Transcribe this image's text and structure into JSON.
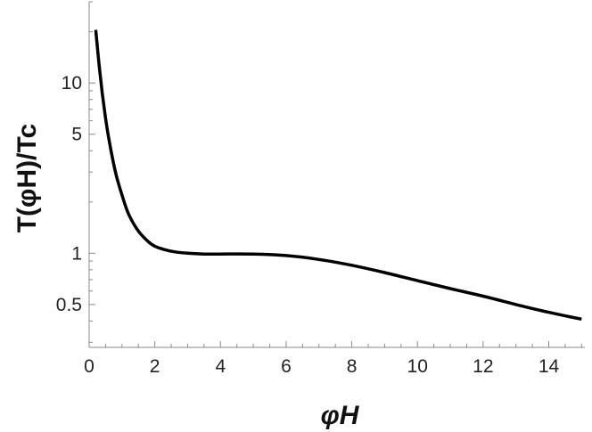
{
  "chart_data": {
    "type": "line",
    "title": "",
    "xlabel": "φH",
    "ylabel": "T(φH)/Tc",
    "x_scale": "linear",
    "y_scale": "log",
    "xlim": [
      0,
      15.1
    ],
    "ylim": [
      0.28,
      30
    ],
    "xticks": [
      0,
      2,
      4,
      6,
      8,
      10,
      12,
      14
    ],
    "yticks": [
      0.5,
      1,
      5,
      10
    ],
    "ytick_labels": [
      "0.5",
      "1",
      "5",
      "10"
    ],
    "grid": false,
    "legend": "none",
    "series": [
      {
        "color": "#000000",
        "x": [
          0.2,
          0.3,
          0.4,
          0.5,
          0.6,
          0.8,
          1.0,
          1.2,
          1.5,
          1.8,
          2.0,
          2.3,
          2.6,
          3.0,
          3.5,
          4.0,
          5.0,
          6.0,
          7.0,
          8.0,
          9.0,
          10.0,
          11.0,
          12.0,
          13.0,
          14.0,
          15.0
        ],
        "y": [
          20.5,
          13.0,
          8.7,
          6.2,
          4.7,
          3.0,
          2.2,
          1.7,
          1.35,
          1.17,
          1.1,
          1.05,
          1.02,
          1.0,
          0.99,
          0.99,
          0.99,
          0.97,
          0.92,
          0.85,
          0.77,
          0.69,
          0.62,
          0.56,
          0.5,
          0.45,
          0.41
        ]
      }
    ],
    "colors": {
      "line": "#000000",
      "axes": "#888888",
      "text": "#222222"
    }
  }
}
